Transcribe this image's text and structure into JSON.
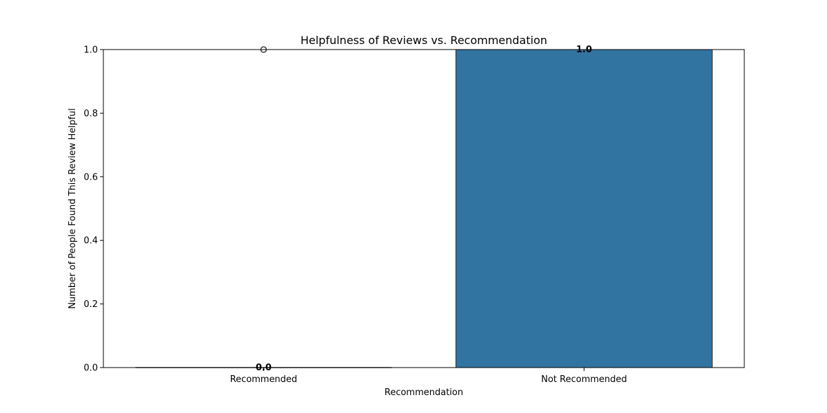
{
  "chart_data": {
    "type": "bar",
    "title": "Helpfulness of Reviews vs. Recommendation",
    "xlabel": "Recommendation",
    "ylabel": "Number of People Found This Review Helpful",
    "categories": [
      "Recommended",
      "Not Recommended"
    ],
    "values": [
      0.0,
      1.0
    ],
    "data_labels": [
      "0.0",
      "1.0"
    ],
    "ylim": [
      0.0,
      1.0
    ],
    "yticks": [
      0.0,
      0.2,
      0.4,
      0.6,
      0.8,
      1.0
    ],
    "ytick_labels": [
      "0.0",
      "0.2",
      "0.4",
      "0.6",
      "0.8",
      "1.0"
    ],
    "overlay": {
      "type": "box",
      "category": "Recommended",
      "median": 0.0,
      "q1": 0.0,
      "q3": 0.0,
      "whisker_low": 0.0,
      "whisker_high": 0.0,
      "outliers": [
        1.0
      ]
    },
    "bar_color": "#3274a1",
    "grid": false
  }
}
